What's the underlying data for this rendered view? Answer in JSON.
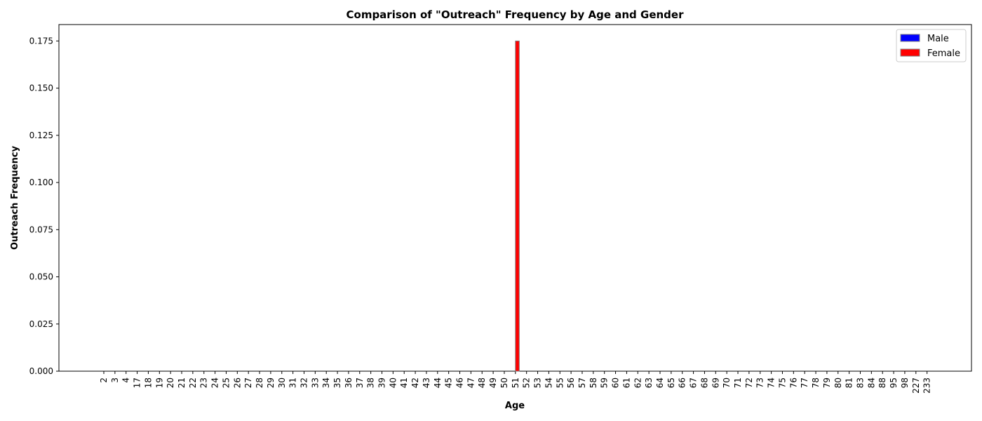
{
  "chart_data": {
    "type": "bar",
    "title": "Comparison of \"Outreach\" Frequency by Age and Gender",
    "xlabel": "Age",
    "ylabel": "Outreach Frequency",
    "ylim": [
      0,
      0.1837
    ],
    "yticks": [
      "0.000",
      "0.025",
      "0.050",
      "0.075",
      "0.100",
      "0.125",
      "0.150",
      "0.175"
    ],
    "categories": [
      "2",
      "3",
      "4",
      "17",
      "18",
      "19",
      "20",
      "21",
      "22",
      "23",
      "24",
      "25",
      "26",
      "27",
      "28",
      "29",
      "30",
      "31",
      "32",
      "33",
      "34",
      "35",
      "36",
      "37",
      "38",
      "39",
      "40",
      "41",
      "42",
      "43",
      "44",
      "45",
      "46",
      "47",
      "48",
      "49",
      "50",
      "51",
      "52",
      "53",
      "54",
      "55",
      "56",
      "57",
      "58",
      "59",
      "60",
      "61",
      "62",
      "63",
      "64",
      "65",
      "66",
      "67",
      "68",
      "69",
      "70",
      "71",
      "72",
      "73",
      "74",
      "75",
      "76",
      "77",
      "78",
      "79",
      "80",
      "81",
      "83",
      "84",
      "88",
      "95",
      "98",
      "227",
      "233"
    ],
    "series": [
      {
        "name": "Male",
        "color": "#0000ff",
        "values": {}
      },
      {
        "name": "Female",
        "color": "#ff0000",
        "values": {
          "51": 0.175
        }
      }
    ],
    "legend": {
      "position": "top-right",
      "entries": [
        "Male",
        "Female"
      ]
    }
  }
}
